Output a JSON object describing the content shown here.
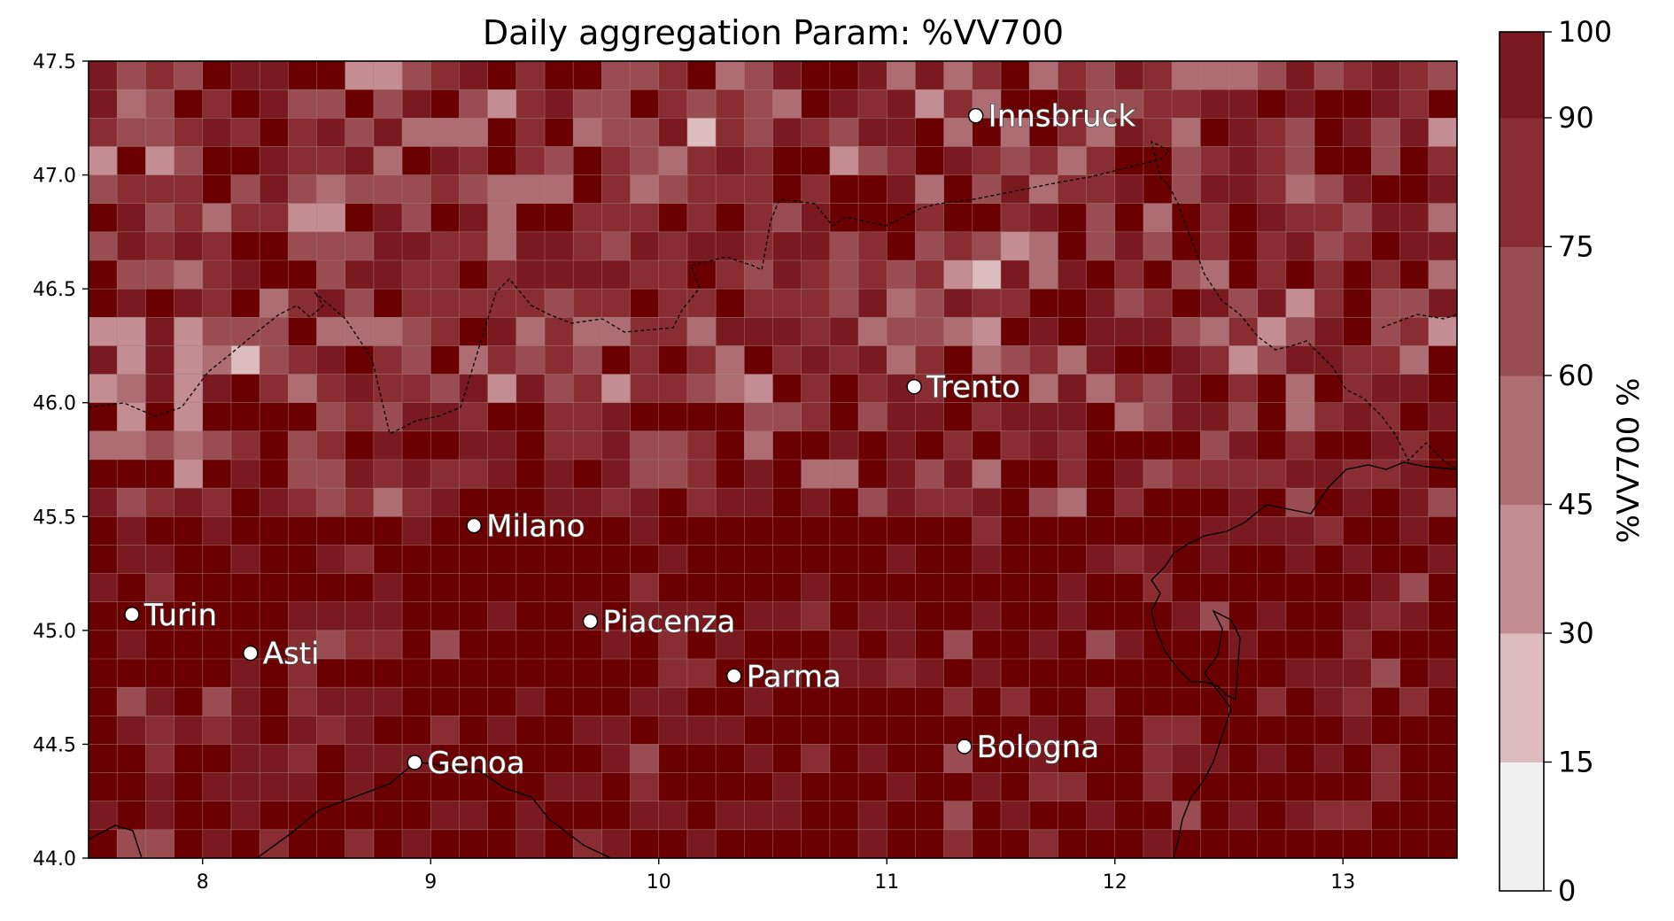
{
  "chart_data": {
    "type": "heatmap",
    "title": "Daily aggregation Param: %VV700",
    "xlabel": "",
    "ylabel": "",
    "xlim": [
      7.5,
      13.5
    ],
    "ylim": [
      44.0,
      47.5
    ],
    "x_ticks": [
      "8",
      "9",
      "10",
      "11",
      "12",
      "13"
    ],
    "y_ticks": [
      "44.0",
      "44.5",
      "45.0",
      "45.5",
      "46.0",
      "46.5",
      "47.0",
      "47.5"
    ],
    "grid": true,
    "colorbar": {
      "label": "%VV700  %",
      "levels": [
        "0",
        "15",
        "30",
        "45",
        "60",
        "75",
        "90",
        "100"
      ],
      "colors": [
        "#f0f0f0",
        "#dcbcbf",
        "#c48d93",
        "#ad6d72",
        "#994c52",
        "#8a2d33",
        "#7a1a20",
        "#6b0000"
      ]
    },
    "grid_resolution_deg": 0.125,
    "field_description": "value concentration: lower values (30-75) mostly in the northern Alpine half, values 90-100 dominate the southern Po valley",
    "cities": [
      {
        "name": "Innsbruck",
        "lon": 11.39,
        "lat": 47.26
      },
      {
        "name": "Trento",
        "lon": 11.12,
        "lat": 46.07
      },
      {
        "name": "Milano",
        "lon": 9.19,
        "lat": 45.46
      },
      {
        "name": "Turin",
        "lon": 7.69,
        "lat": 45.07
      },
      {
        "name": "Piacenza",
        "lon": 9.7,
        "lat": 45.04
      },
      {
        "name": "Asti",
        "lon": 8.21,
        "lat": 44.9
      },
      {
        "name": "Parma",
        "lon": 10.33,
        "lat": 44.8
      },
      {
        "name": "Bologna",
        "lon": 11.34,
        "lat": 44.49
      },
      {
        "name": "Genoa",
        "lon": 8.93,
        "lat": 44.42
      }
    ]
  }
}
